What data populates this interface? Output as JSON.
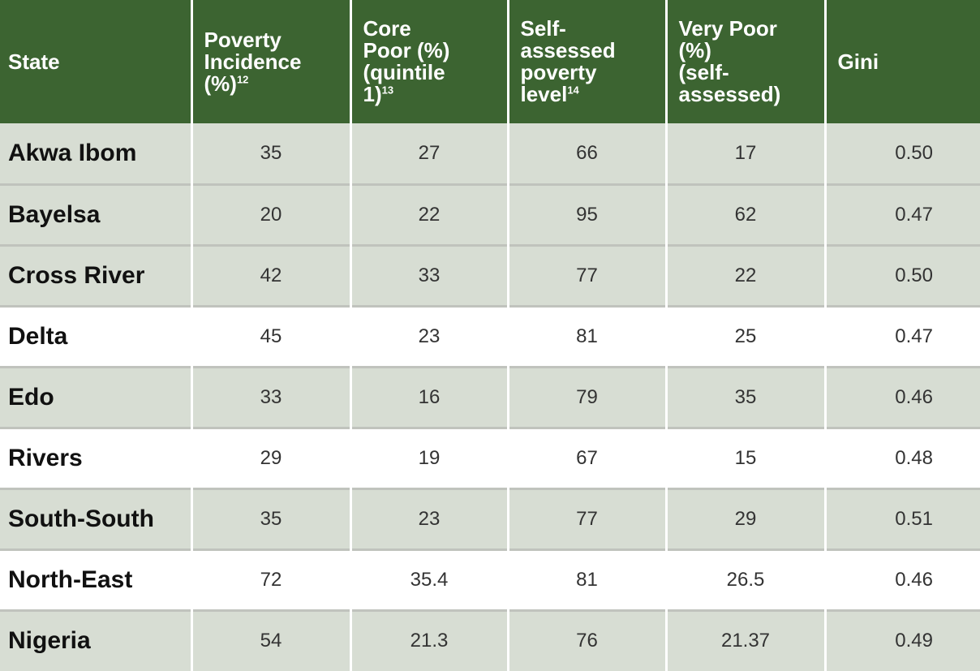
{
  "header": {
    "state": "State",
    "poverty_incidence": [
      "Poverty",
      "Incidence",
      "(%)"
    ],
    "poverty_incidence_sup": "12",
    "core_poor": [
      "Core",
      "Poor (%)",
      "(quintile",
      "1)"
    ],
    "core_poor_sup": "13",
    "self_assessed": [
      "Self-",
      "assessed",
      "poverty",
      "level"
    ],
    "self_assessed_sup": "14",
    "very_poor": [
      "Very Poor",
      "(%)",
      "(self-",
      "assessed)"
    ],
    "gini": "Gini"
  },
  "rows": [
    {
      "state": "Akwa Ibom",
      "poverty": "35",
      "core": "27",
      "self": "66",
      "very": "17",
      "gini": "0.50"
    },
    {
      "state": "Bayelsa",
      "poverty": "20",
      "core": "22",
      "self": "95",
      "very": "62",
      "gini": "0.47"
    },
    {
      "state": "Cross River",
      "poverty": "42",
      "core": "33",
      "self": "77",
      "very": "22",
      "gini": "0.50"
    },
    {
      "state": "Delta",
      "poverty": "45",
      "core": "23",
      "self": "81",
      "very": "25",
      "gini": "0.47"
    },
    {
      "state": "Edo",
      "poverty": "33",
      "core": "16",
      "self": "79",
      "very": "35",
      "gini": "0.46"
    },
    {
      "state": "Rivers",
      "poverty": "29",
      "core": "19",
      "self": "67",
      "very": "15",
      "gini": "0.48"
    },
    {
      "state": "South-South",
      "poverty": "35",
      "core": "23",
      "self": "77",
      "very": "29",
      "gini": "0.51"
    },
    {
      "state": "North-East",
      "poverty": "72",
      "core": "35.4",
      "self": "81",
      "very": "26.5",
      "gini": "0.46"
    },
    {
      "state": "Nigeria",
      "poverty": "54",
      "core": "21.3",
      "self": "76",
      "very": "21.37",
      "gini": "0.49"
    }
  ],
  "colors": {
    "header_bg": "#3c6431",
    "shaded_row": "#d7ddd3",
    "plain_row": "#ffffff"
  }
}
